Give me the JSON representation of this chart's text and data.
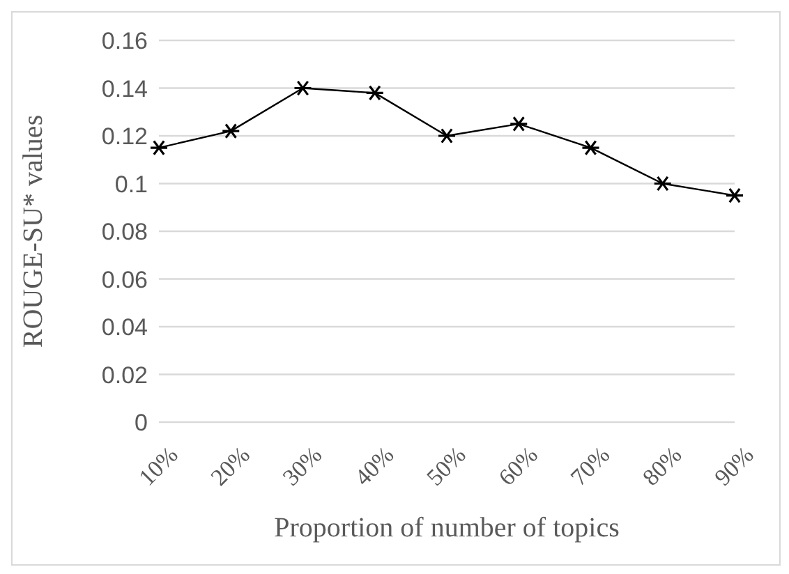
{
  "chart_data": {
    "type": "line",
    "xlabel": "Proportion of number of topics",
    "ylabel": "ROUGE-SU* values",
    "categories": [
      "10%",
      "20%",
      "30%",
      "40%",
      "50%",
      "60%",
      "70%",
      "80%",
      "90%"
    ],
    "series": [
      {
        "color": "#000000",
        "values": [
          0.115,
          0.122,
          0.14,
          0.138,
          0.12,
          0.125,
          0.115,
          0.1,
          0.095
        ]
      }
    ],
    "ylim": [
      0,
      0.16
    ],
    "yticks": [
      0,
      0.02,
      0.04,
      0.06,
      0.08,
      0.1,
      0.12,
      0.14,
      0.16
    ],
    "grid": "y",
    "legend": false,
    "marker": "cross",
    "line_style": "solid"
  }
}
